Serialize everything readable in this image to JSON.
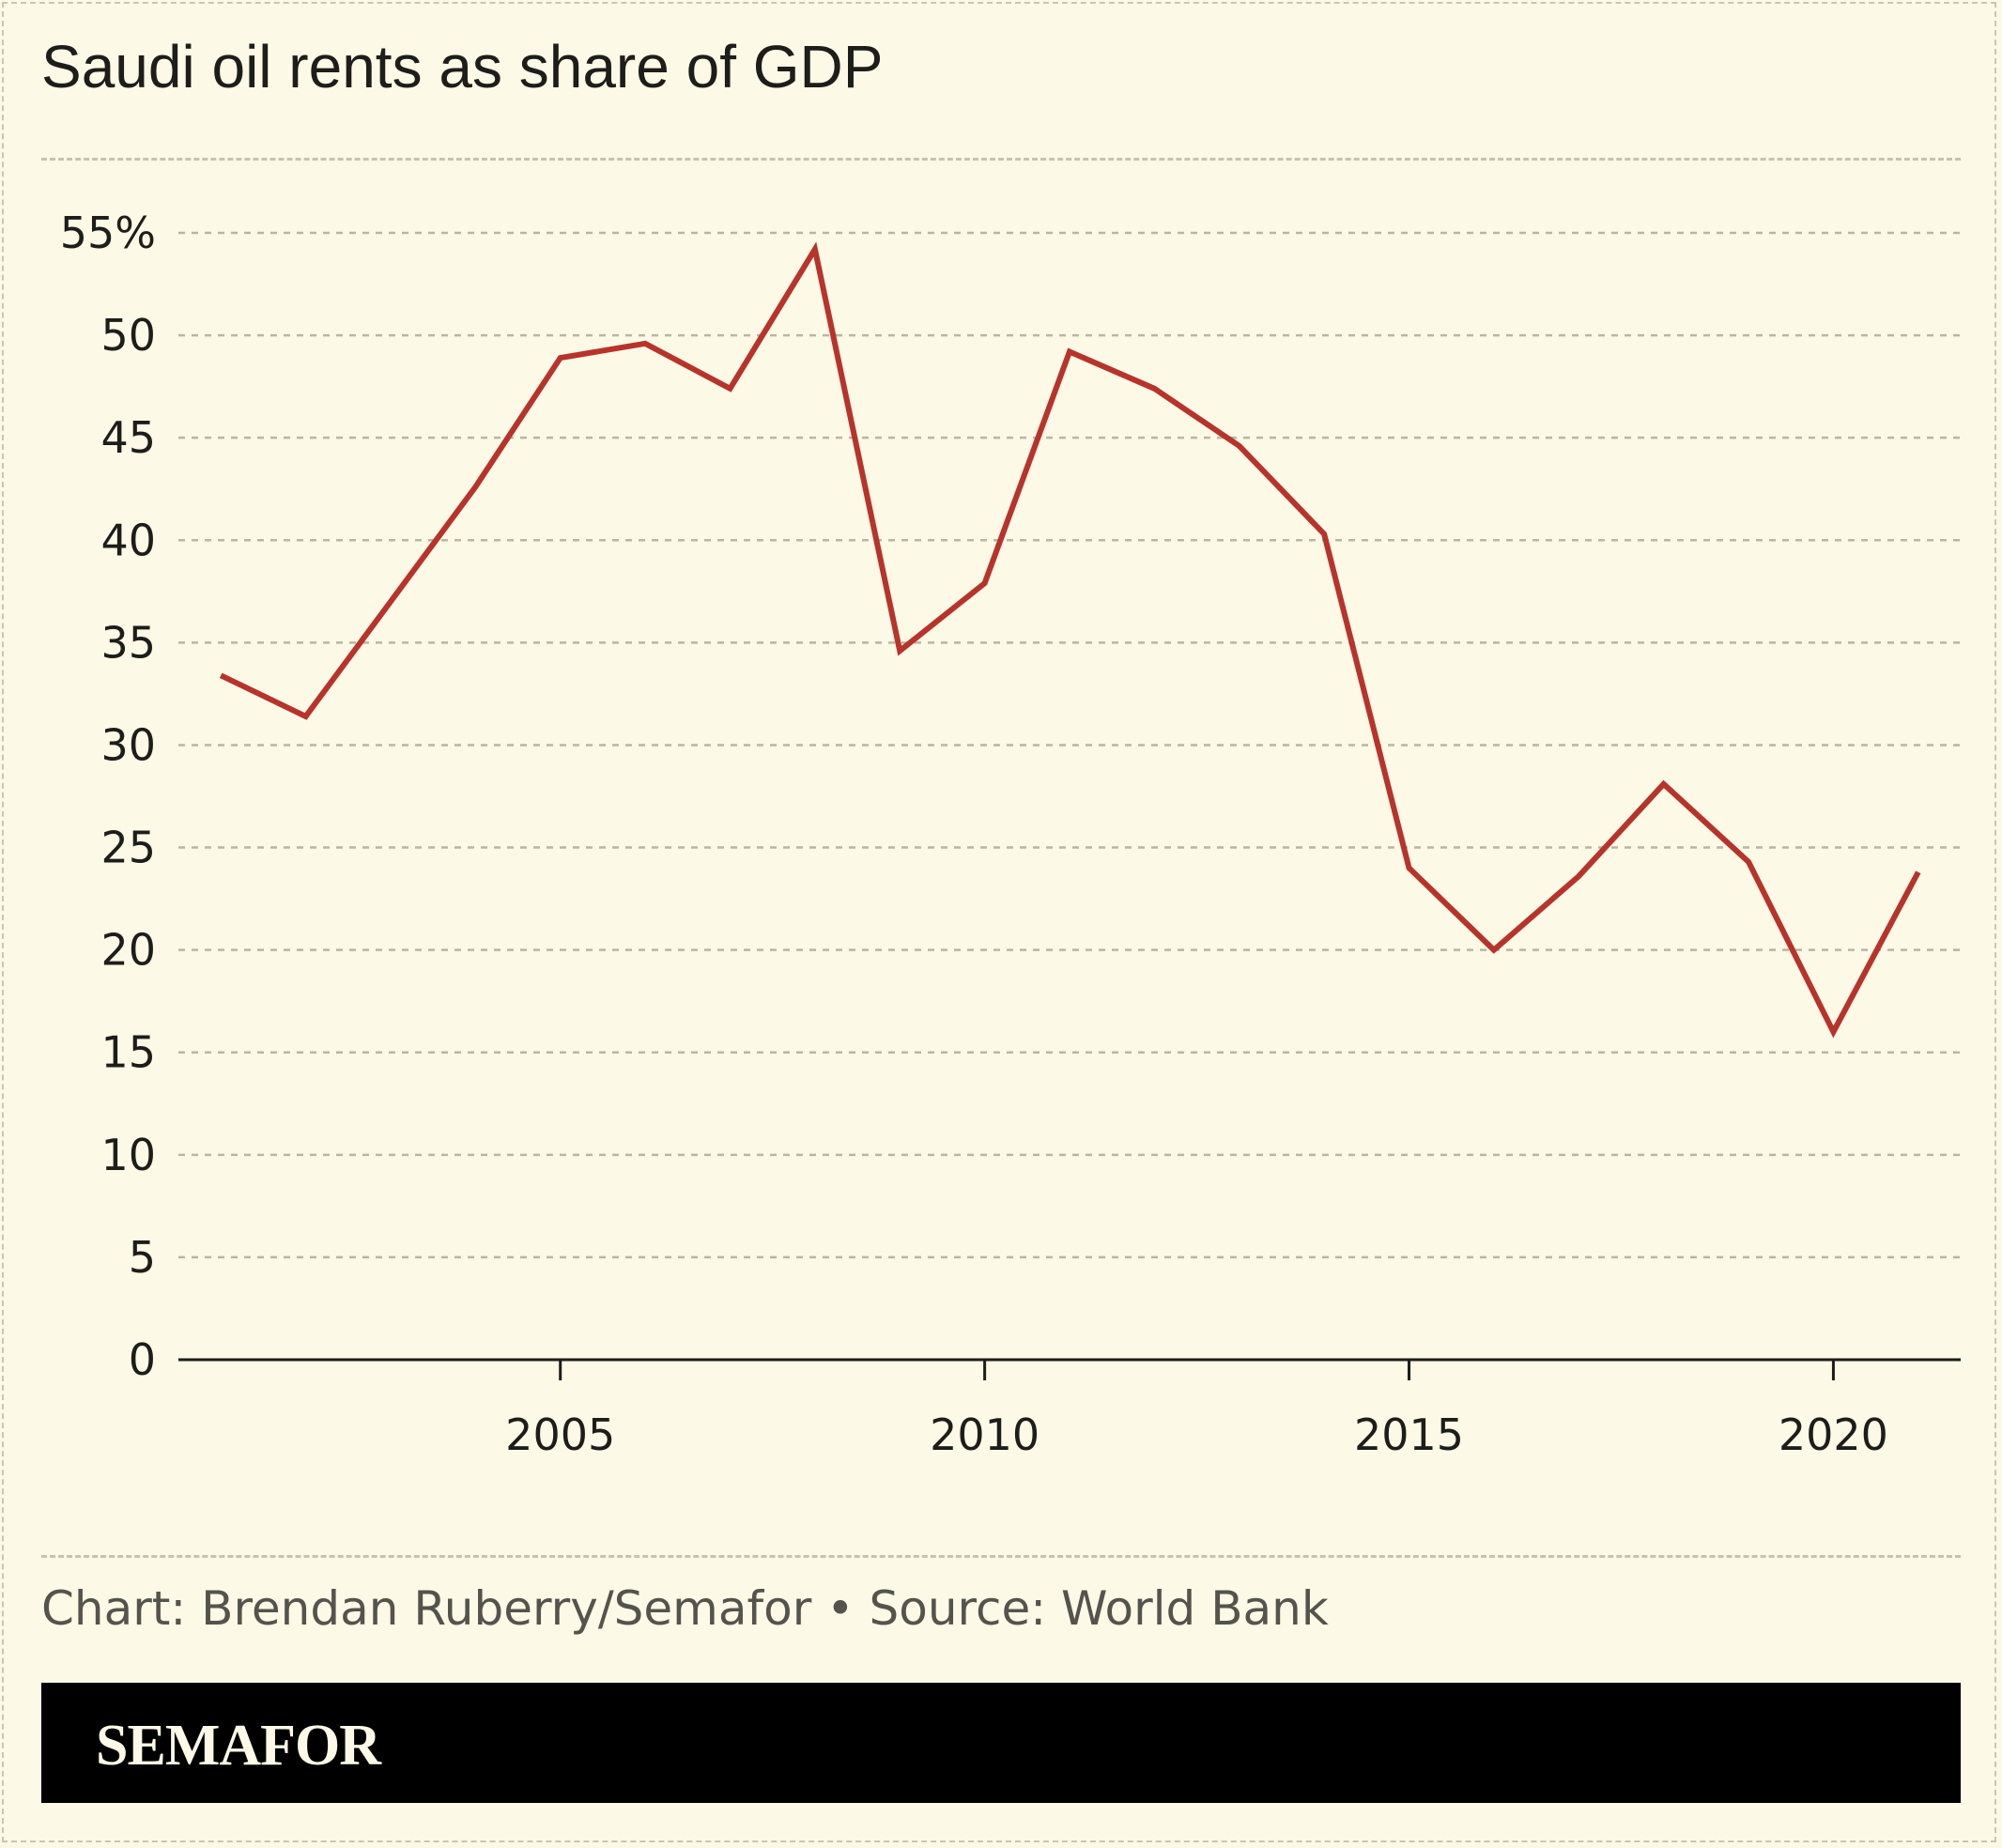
{
  "title": "Saudi oil rents as share of GDP",
  "credit": "Chart: Brendan Ruberry/Semafor • Source: World Bank",
  "brand": "SEMAFOR",
  "colors": {
    "background": "#fcf9e6",
    "line": "#b8332a",
    "grid": "#b9b6a6",
    "text": "#1d1d1b"
  },
  "chart_data": {
    "type": "line",
    "title": "Saudi oil rents as share of GDP",
    "xlabel": "",
    "ylabel": "",
    "x": [
      2001,
      2002,
      2003,
      2004,
      2005,
      2006,
      2007,
      2008,
      2009,
      2010,
      2011,
      2012,
      2013,
      2014,
      2015,
      2016,
      2017,
      2018,
      2019,
      2020,
      2021
    ],
    "series": [
      {
        "values": [
          33.4,
          31.4,
          37.0,
          42.6,
          48.9,
          49.6,
          47.4,
          54.2,
          34.6,
          37.9,
          49.2,
          47.4,
          44.6,
          40.3,
          24.0,
          20.0,
          23.6,
          28.1,
          24.3,
          16.0,
          23.8
        ]
      }
    ],
    "xlim": [
      2000.5,
      2021.5
    ],
    "ylim": [
      0,
      55
    ],
    "yticks": [
      0,
      5,
      10,
      15,
      20,
      25,
      30,
      35,
      40,
      45,
      50,
      55
    ],
    "ytick_labels": [
      "0",
      "5",
      "10",
      "15",
      "20",
      "25",
      "30",
      "35",
      "40",
      "45",
      "50",
      "55%"
    ],
    "xticks": [
      2005,
      2010,
      2015,
      2020
    ],
    "xtick_labels": [
      "2005",
      "2010",
      "2015",
      "2020"
    ],
    "grid": true,
    "legend": "none"
  }
}
